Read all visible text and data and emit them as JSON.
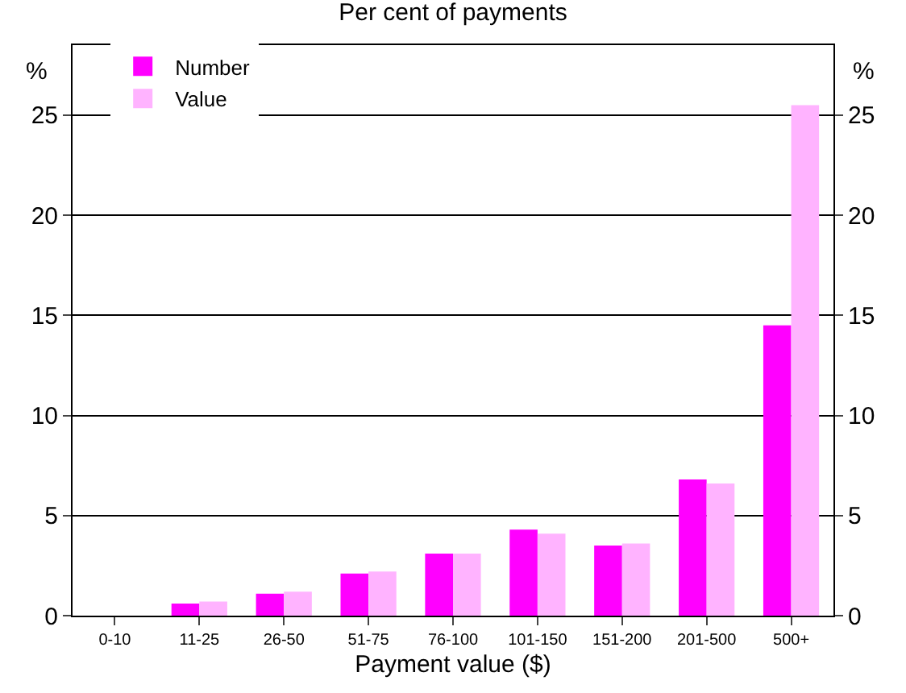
{
  "chart_data": {
    "type": "bar",
    "title": "Per cent of payments",
    "xlabel": "Payment value ($)",
    "ylabel": "%",
    "y2label": "%",
    "categories": [
      "0-10",
      "11-25",
      "26-50",
      "51-75",
      "76-100",
      "101-150",
      "151-200",
      "201-500",
      "500+"
    ],
    "series": [
      {
        "name": "Number",
        "color": "#ff00ff",
        "values": [
          0,
          0.6,
          1.1,
          2.1,
          3.1,
          4.3,
          3.5,
          6.8,
          14.5
        ]
      },
      {
        "name": "Value",
        "color": "#ffb3ff",
        "values": [
          0,
          0.7,
          1.2,
          2.2,
          3.1,
          4.1,
          3.6,
          6.6,
          25.5
        ]
      }
    ],
    "ylim": [
      0,
      28
    ],
    "yticks": [
      0,
      5,
      10,
      15,
      20,
      25
    ],
    "y2lim": [
      0,
      28
    ],
    "y2ticks": [
      0,
      5,
      10,
      15,
      20,
      25
    ],
    "grid": "y",
    "legend": "top left"
  }
}
